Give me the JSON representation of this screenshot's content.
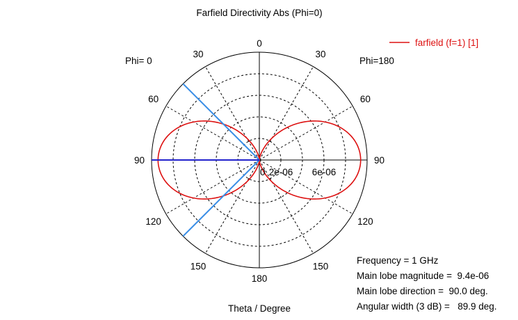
{
  "colors": {
    "pattern": "#dd1111",
    "main_lobe": "#2222cc",
    "beam_width": "#3a8ee6",
    "grid": "#000000"
  },
  "chart_data": {
    "type": "polar",
    "title": "Farfield Directivity Abs (Phi=0)",
    "xlabel": "Theta / Degree",
    "left_half_label": "Phi=  0",
    "right_half_label": "Phi=180",
    "angle_ticks": [
      0,
      30,
      60,
      90,
      120,
      150,
      180
    ],
    "radial_ticks": [
      {
        "value": 0,
        "label": "0"
      },
      {
        "value": 2e-06,
        "label": "2e-06"
      },
      {
        "value": 6e-06,
        "label": "6e-06"
      }
    ],
    "radial_grid_values": [
      2e-06,
      4e-06,
      6e-06,
      8e-06
    ],
    "r_max": 1e-05,
    "grid": true,
    "legend": {
      "position": "top-right",
      "entries": [
        "farfield (f=1) [1]"
      ]
    },
    "series": [
      {
        "name": "farfield (f=1) [1]",
        "model": "magnitude * sin(theta)^2",
        "magnitude": 9.4e-06,
        "theta": [
          0,
          30,
          45,
          60,
          90,
          120,
          135,
          150,
          180
        ],
        "values": [
          0,
          2.35e-06,
          4.7e-06,
          7.05e-06,
          9.4e-06,
          7.05e-06,
          4.7e-06,
          2.35e-06,
          0
        ]
      }
    ],
    "main_lobe_direction": 90.0,
    "beam_width_3db": 89.9
  },
  "info": {
    "frequency": "Frequency = 1 GHz",
    "main_lobe_magnitude": "Main lobe magnitude =  9.4e-06",
    "main_lobe_direction": "Main lobe direction =  90.0 deg.",
    "angular_width": "Angular width (3 dB) =   89.9 deg."
  }
}
